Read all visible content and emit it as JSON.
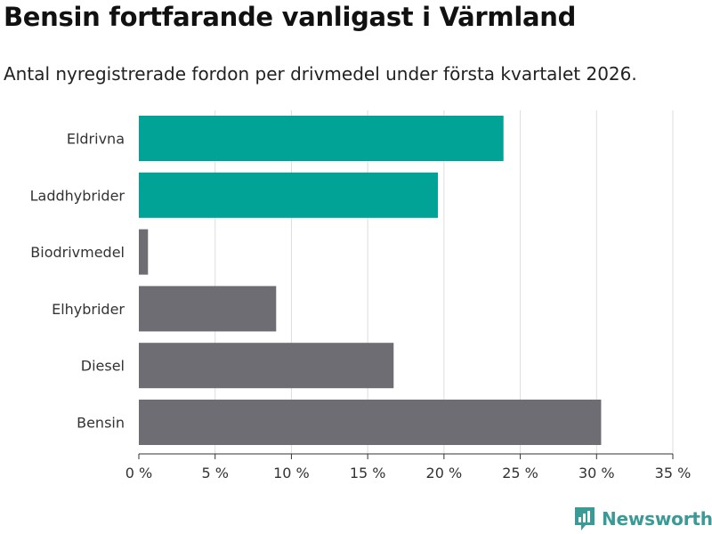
{
  "header": {
    "title": "Bensin fortfarande vanligast i Värmland",
    "subtitle": "Antal nyregistrerade fordon per drivmedel under första kvartalet 2026."
  },
  "brand": {
    "name": "Newsworthy",
    "color": "#3a9a95"
  },
  "colors": {
    "highlight": "#00a396",
    "default": "#6e6d73",
    "grid": "#dddddd",
    "axis": "#333333"
  },
  "chart_data": {
    "type": "bar",
    "orientation": "horizontal",
    "categories": [
      "Eldrivna",
      "Laddhybrider",
      "Biodrivmedel",
      "Elhybrider",
      "Diesel",
      "Bensin"
    ],
    "values": [
      23.9,
      19.6,
      0.6,
      9.0,
      16.7,
      30.3
    ],
    "highlighted": [
      true,
      true,
      false,
      false,
      false,
      false
    ],
    "xlim": [
      0,
      35
    ],
    "xticks": [
      0,
      5,
      10,
      15,
      20,
      25,
      30,
      35
    ],
    "xtick_labels": [
      "0 %",
      "5 %",
      "10 %",
      "15 %",
      "20 %",
      "25 %",
      "30 %",
      "35 %"
    ],
    "xlabel": "",
    "ylabel": "",
    "grid": true,
    "title": "Bensin fortfarande vanligast i Värmland"
  }
}
